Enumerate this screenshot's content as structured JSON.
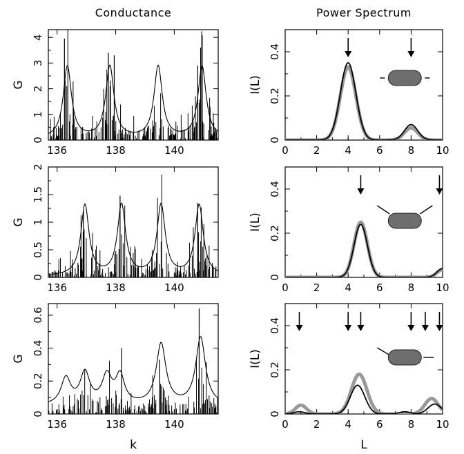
{
  "figure": {
    "left_title": "Conductance",
    "right_title": "Power Spectrum",
    "left_xlabel": "k",
    "right_xlabel": "L"
  },
  "chart_data": [
    {
      "type": "line",
      "panel": "conductance-top",
      "column_title": "Conductance",
      "ylabel": "G",
      "xlabel": "",
      "xlim": [
        135.7,
        141.5
      ],
      "ylim": [
        0,
        4.3
      ],
      "xticks": [
        136,
        138,
        140
      ],
      "xtick_labels": [
        "136",
        "138",
        "140"
      ],
      "yticks": [
        0,
        1,
        2,
        3,
        4
      ],
      "ytick_labels": [
        "0",
        "1",
        "2",
        "3",
        "4"
      ],
      "series": [
        {
          "style": "smooth",
          "peaks": [
            [
              136.35,
              2.8,
              0.17
            ],
            [
              137.8,
              2.8,
              0.17
            ],
            [
              139.45,
              2.8,
              0.17
            ],
            [
              140.95,
              2.8,
              0.17
            ]
          ],
          "baseline": 0.05
        }
      ],
      "spikes": {
        "seed": 11,
        "density": 4,
        "height_ref": 2.8,
        "tall": [
          [
            136.25,
            3.95
          ],
          [
            137.75,
            3.4
          ],
          [
            137.95,
            3.3
          ],
          [
            140.9,
            3.6
          ],
          [
            140.8,
            2.9
          ]
        ]
      }
    },
    {
      "type": "line",
      "panel": "conductance-middle",
      "ylabel": "G",
      "xlabel": "",
      "xlim": [
        135.7,
        141.5
      ],
      "ylim": [
        0,
        2.0
      ],
      "xticks": [
        136,
        138,
        140
      ],
      "xtick_labels": [
        "136",
        "138",
        "140"
      ],
      "yticks": [
        0,
        0.5,
        1,
        1.5,
        2
      ],
      "ytick_labels": [
        "0",
        "0.5",
        "1",
        "1.5",
        "2"
      ],
      "series": [
        {
          "style": "smooth",
          "peaks": [
            [
              136.95,
              1.28,
              0.17
            ],
            [
              138.2,
              1.28,
              0.17
            ],
            [
              139.55,
              1.28,
              0.17
            ],
            [
              140.85,
              1.28,
              0.17
            ]
          ],
          "baseline": 0.02
        }
      ],
      "spikes": {
        "seed": 23,
        "density": 4,
        "height_ref": 1.28,
        "tall": [
          [
            138.15,
            1.48
          ],
          [
            140.8,
            1.35
          ],
          [
            136.9,
            1.2
          ]
        ]
      }
    },
    {
      "type": "line",
      "panel": "conductance-bottom",
      "ylabel": "G",
      "xlabel": "k",
      "xlim": [
        135.7,
        141.5
      ],
      "ylim": [
        0,
        0.67
      ],
      "xticks": [
        136,
        138,
        140
      ],
      "xtick_labels": [
        "136",
        "138",
        "140"
      ],
      "yticks": [
        0,
        0.2,
        0.4,
        0.6
      ],
      "ytick_labels": [
        "0",
        "0.2",
        "0.4",
        "0.6"
      ],
      "series": [
        {
          "style": "smooth",
          "peaks": [
            [
              136.3,
              0.16,
              0.2
            ],
            [
              136.95,
              0.19,
              0.2
            ],
            [
              137.7,
              0.17,
              0.2
            ],
            [
              138.15,
              0.17,
              0.18
            ],
            [
              139.55,
              0.37,
              0.2
            ],
            [
              140.9,
              0.41,
              0.2
            ]
          ],
          "baseline": 0.05
        }
      ],
      "spikes": {
        "seed": 37,
        "density": 3,
        "height_ref": 0.25,
        "tall": [
          [
            140.85,
            0.64
          ],
          [
            138.2,
            0.4
          ],
          [
            139.5,
            0.33
          ]
        ]
      }
    },
    {
      "type": "line",
      "panel": "spectrum-top",
      "column_title": "Power Spectrum",
      "ylabel": "I(L)",
      "xlabel": "",
      "xlim": [
        0,
        10
      ],
      "ylim": [
        0,
        0.5
      ],
      "xticks": [
        0,
        2,
        4,
        6,
        8,
        10
      ],
      "xtick_labels": [
        "0",
        "2",
        "4",
        "6",
        "8",
        "10"
      ],
      "yticks": [
        0,
        0.2,
        0.4
      ],
      "ytick_labels": [
        "0",
        "0.2",
        "0.4"
      ],
      "arrows_at_L": [
        4,
        8
      ],
      "inset": "leads-horizontal",
      "series": [
        {
          "color": "#999999",
          "width": "thick",
          "peaks": [
            [
              4.0,
              0.33,
              0.7
            ],
            [
              8.0,
              0.055,
              0.6
            ]
          ]
        },
        {
          "color": "#000000",
          "width": "thin",
          "peaks": [
            [
              4.0,
              0.35,
              0.7
            ],
            [
              8.0,
              0.07,
              0.6
            ]
          ]
        }
      ]
    },
    {
      "type": "line",
      "panel": "spectrum-middle",
      "ylabel": "I(L)",
      "xlabel": "",
      "xlim": [
        0,
        10
      ],
      "ylim": [
        0,
        0.5
      ],
      "xticks": [
        0,
        2,
        4,
        6,
        8,
        10
      ],
      "xtick_labels": [
        "0",
        "2",
        "4",
        "6",
        "8",
        "10"
      ],
      "yticks": [
        0,
        0.2,
        0.4
      ],
      "ytick_labels": [
        "0",
        "0.2",
        "0.4"
      ],
      "arrows_at_L": [
        4.8,
        9.8
      ],
      "inset": "leads-angled",
      "series": [
        {
          "color": "#999999",
          "width": "thick",
          "peaks": [
            [
              4.8,
              0.25,
              0.6
            ],
            [
              10.0,
              0.035,
              0.5
            ]
          ]
        },
        {
          "color": "#000000",
          "width": "thin",
          "peaks": [
            [
              4.8,
              0.24,
              0.6
            ],
            [
              10.0,
              0.04,
              0.5
            ]
          ]
        }
      ]
    },
    {
      "type": "line",
      "panel": "spectrum-bottom",
      "ylabel": "I(L)",
      "xlabel": "L",
      "xlim": [
        0,
        10
      ],
      "ylim": [
        0,
        0.5
      ],
      "xticks": [
        0,
        2,
        4,
        6,
        8,
        10
      ],
      "xtick_labels": [
        "0",
        "2",
        "4",
        "6",
        "8",
        "10"
      ],
      "yticks": [
        0,
        0.2,
        0.4
      ],
      "ytick_labels": [
        "0",
        "0.2",
        "0.4"
      ],
      "arrows_at_L": [
        0.9,
        4.0,
        4.8,
        8.0,
        8.9,
        9.8
      ],
      "inset": "leads-mixed",
      "series": [
        {
          "color": "#999999",
          "width": "thick",
          "peaks": [
            [
              1.0,
              0.04,
              0.5
            ],
            [
              4.7,
              0.18,
              0.7
            ],
            [
              9.3,
              0.07,
              0.6
            ]
          ]
        },
        {
          "color": "#000000",
          "width": "thin",
          "peaks": [
            [
              0.9,
              0.01,
              0.5
            ],
            [
              4.6,
              0.13,
              0.65
            ],
            [
              7.6,
              0.01,
              0.5
            ],
            [
              9.5,
              0.045,
              0.6
            ]
          ]
        }
      ]
    }
  ]
}
